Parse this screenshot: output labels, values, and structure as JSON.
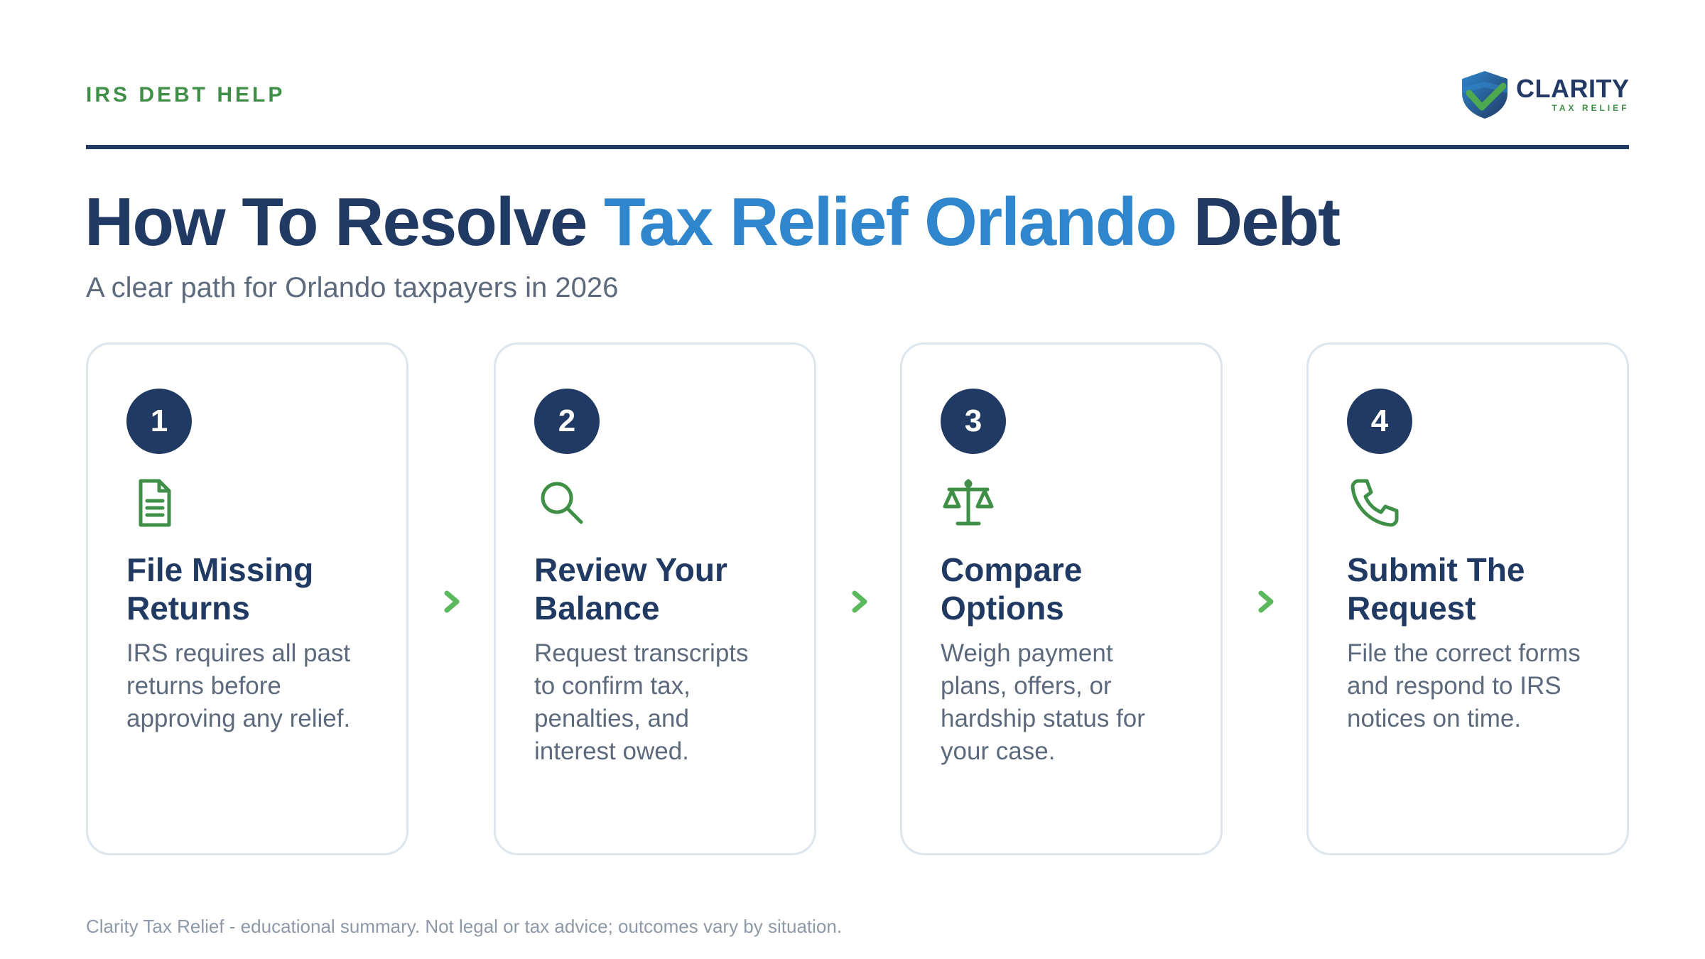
{
  "header": {
    "eyebrow": "IRS DEBT HELP",
    "logo": {
      "name": "CLARITY",
      "tagline": "TAX RELIEF",
      "icon": "shield-check-icon"
    }
  },
  "title": {
    "part1": "How To Resolve ",
    "accent": "Tax Relief Orlando",
    "part2": " Debt"
  },
  "subtitle": "A clear path for Orlando taxpayers in 2026",
  "steps": [
    {
      "number": "1",
      "icon": "document-icon",
      "title": "File Missing Returns",
      "description": "IRS requires all past returns before approving any relief."
    },
    {
      "number": "2",
      "icon": "search-icon",
      "title": "Review Your Balance",
      "description": "Request transcripts to confirm tax, penalties, and interest owed."
    },
    {
      "number": "3",
      "icon": "scale-icon",
      "title": "Compare Options",
      "description": "Weigh payment plans, offers, or hardship status for your case."
    },
    {
      "number": "4",
      "icon": "phone-icon",
      "title": "Submit The Request",
      "description": "File the correct forms and respond to IRS notices on time."
    }
  ],
  "footer": "Clarity Tax Relief - educational summary. Not legal or tax advice; outcomes vary by situation.",
  "colors": {
    "navy": "#213a63",
    "accent_blue": "#2f86cc",
    "green": "#3f8f47",
    "chevron_green": "#5cb85c",
    "muted_text": "#5d6a7e",
    "card_border": "#dde5ee"
  }
}
